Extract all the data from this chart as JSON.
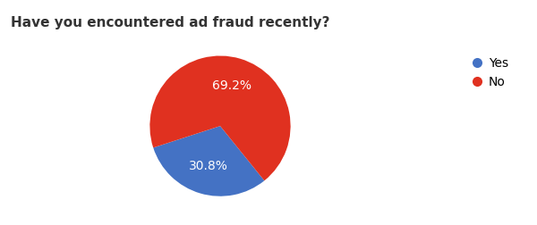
{
  "title": "Have you encountered ad fraud recently?",
  "labels": [
    "Yes",
    "No"
  ],
  "values": [
    30.8,
    69.2
  ],
  "colors": [
    "#4472c4",
    "#e03120"
  ],
  "legend_labels": [
    "Yes",
    "No"
  ],
  "title_fontsize": 11,
  "autopct_fontsize": 10,
  "background_color": "#ffffff",
  "startangle": 198,
  "legend_marker_color_yes": "#4472c4",
  "legend_marker_color_no": "#e03120",
  "title_color": "#333333"
}
